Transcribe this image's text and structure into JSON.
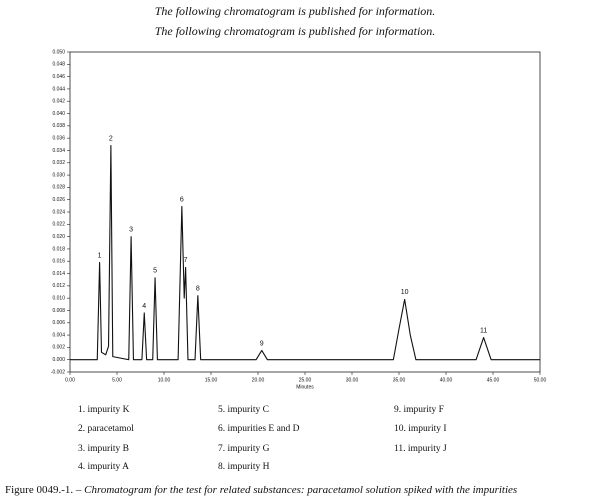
{
  "header": {
    "line1": "The following chromatogram is published for information.",
    "line2": "The following chromatogram is published for information."
  },
  "chart_data": {
    "type": "line",
    "x_label": "Minutes",
    "x": [
      0,
      2.9,
      3.15,
      3.35,
      3.8,
      4.1,
      4.35,
      4.55,
      6.25,
      6.5,
      6.75,
      7.65,
      7.9,
      8.15,
      8.8,
      9.05,
      9.3,
      11.5,
      11.9,
      12.15,
      12.3,
      12.55,
      13.3,
      13.6,
      13.9,
      19.8,
      20.4,
      21.0,
      34.4,
      35.0,
      35.6,
      36.2,
      36.8,
      43.2,
      44.0,
      44.8,
      50
    ],
    "series": [
      {
        "color": "#111111",
        "values": [
          0,
          0,
          0.0158,
          0.0012,
          0.0008,
          0.0022,
          0.0348,
          0.0005,
          0,
          0.02,
          0,
          0,
          0.0076,
          0,
          0,
          0.0133,
          0,
          0,
          0.0249,
          0.01,
          0.015,
          0,
          0,
          0.0104,
          0,
          0,
          0.0015,
          0,
          0,
          0.005,
          0.0098,
          0.004,
          0,
          0,
          0.0036,
          0,
          0
        ]
      }
    ],
    "annotations": [
      {
        "text": "1",
        "x": 3.15,
        "y": 0.0158
      },
      {
        "text": "2",
        "x": 4.35,
        "y": 0.0348
      },
      {
        "text": "3",
        "x": 6.5,
        "y": 0.02
      },
      {
        "text": "4",
        "x": 7.9,
        "y": 0.0076
      },
      {
        "text": "5",
        "x": 9.05,
        "y": 0.0133
      },
      {
        "text": "6",
        "x": 11.9,
        "y": 0.0249
      },
      {
        "text": "7",
        "x": 12.3,
        "y": 0.015
      },
      {
        "text": "8",
        "x": 13.6,
        "y": 0.0104
      },
      {
        "text": "9",
        "x": 20.4,
        "y": 0.0015
      },
      {
        "text": "10",
        "x": 35.6,
        "y": 0.0098
      },
      {
        "text": "11",
        "x": 44.0,
        "y": 0.0036
      }
    ],
    "xlim": [
      0,
      50
    ],
    "ylim": [
      -0.002,
      0.05
    ],
    "xticks": [
      {
        "value": 0,
        "label": "0.00"
      },
      {
        "value": 5,
        "label": "5.00"
      },
      {
        "value": 10,
        "label": "10.00"
      },
      {
        "value": 15,
        "label": "15.00"
      },
      {
        "value": 20,
        "label": "20.00"
      },
      {
        "value": 25,
        "label": "25.00"
      },
      {
        "value": 30,
        "label": "30.00"
      },
      {
        "value": 35,
        "label": "35.00"
      },
      {
        "value": 40,
        "label": "40.00"
      },
      {
        "value": 45,
        "label": "45.00"
      },
      {
        "value": 50,
        "label": "50.00"
      }
    ],
    "yticks": [
      {
        "value": 0.05,
        "label": "0.050"
      },
      0.048,
      0.046,
      0.044,
      0.042,
      {
        "value": 0.04,
        "label": "0.040"
      },
      0.038,
      0.036,
      0.034,
      0.032,
      {
        "value": 0.03,
        "label": "0.030"
      },
      0.028,
      0.026,
      0.024,
      0.022,
      {
        "value": 0.02,
        "label": "0.020"
      },
      0.018,
      0.016,
      0.014,
      0.012,
      {
        "value": 0.01,
        "label": "0.010"
      },
      0.008,
      0.006,
      0.004,
      0.002,
      {
        "value": 0,
        "label": "0.000"
      },
      -0.002
    ],
    "peak_names": [
      "1. impurity K",
      "2. paracetamol",
      "3. impurity B",
      "4. impurity A",
      "5. impurity C",
      "6. impurities E and D",
      "7. impurity G",
      "8. impurity H",
      "9. impurity F",
      "10. impurity I",
      "11. impurity J"
    ]
  },
  "caption": {
    "label": "Figure 0049.-1. – ",
    "text": "Chromatogram for the test for related substances: paracetamol solution spiked with the impurities"
  }
}
